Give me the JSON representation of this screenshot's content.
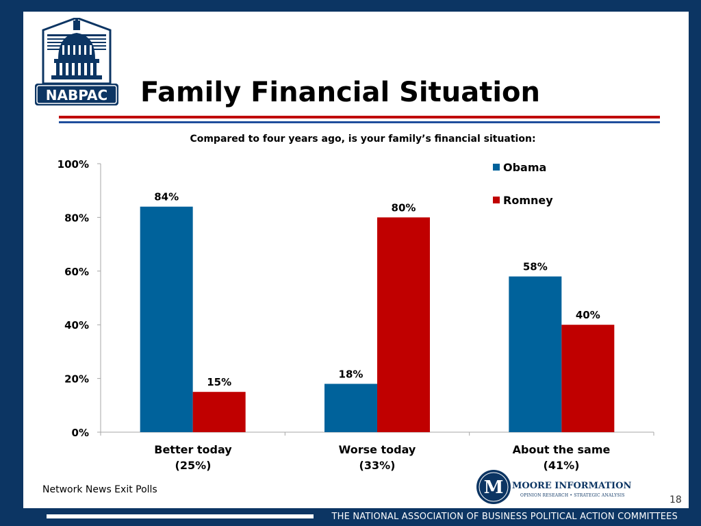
{
  "header": {
    "title": "Family Financial Situation",
    "logo_text": "NABPAC"
  },
  "subtitle": "Compared to four years ago, is your family’s financial situation:",
  "chart_data": {
    "type": "bar",
    "categories": [
      "Better today",
      "Worse today",
      "About the same"
    ],
    "category_sublabels": [
      "(25%)",
      "(33%)",
      "(41%)"
    ],
    "series": [
      {
        "name": "Obama",
        "values": [
          84,
          18,
          58
        ],
        "labels": [
          "84%",
          "18%",
          "58%"
        ],
        "color": "#00629b"
      },
      {
        "name": "Romney",
        "values": [
          15,
          80,
          40
        ],
        "labels": [
          "15%",
          "80%",
          "40%"
        ],
        "color": "#c00000"
      }
    ],
    "y_ticks": [
      "0%",
      "20%",
      "40%",
      "60%",
      "80%",
      "100%"
    ],
    "ylim": [
      0,
      100
    ],
    "legend_position": "top-right",
    "grid": false
  },
  "footer": {
    "source": "Network News Exit Polls",
    "page_number": "18",
    "organization": "THE NATIONAL ASSOCIATION OF BUSINESS POLITICAL ACTION COMMITTEES",
    "moore_name": "MOORE INFORMATION",
    "moore_tagline": "OPINION RESEARCH • STRATEGIC ANALYSIS",
    "moore_initial": "M"
  }
}
